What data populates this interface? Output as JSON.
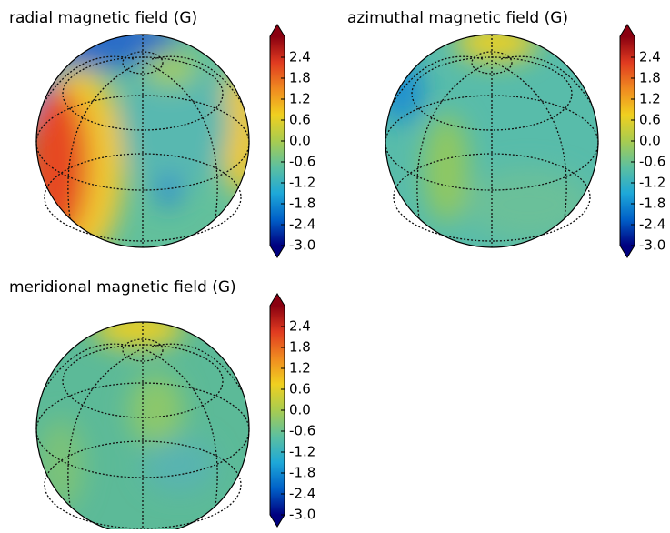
{
  "chart_data": [
    {
      "type": "map",
      "title": "radial magnetic field (G)",
      "colormap": [
        "#00007f",
        "#0060c8",
        "#1ea8d8",
        "#5cc0a0",
        "#a8cc50",
        "#f0d020",
        "#f08a20",
        "#e03a20",
        "#8a0010"
      ],
      "colorbar": {
        "clim": [
          -3,
          3
        ],
        "extend": "both",
        "ticks": [
          {
            "value": -3,
            "label": "-3.0"
          },
          -2.4,
          -1.8,
          -1.2,
          -0.6,
          {
            "value": 0,
            "label": "0.0"
          },
          0.6,
          1.2,
          1.8,
          2.4
        ]
      }
    },
    {
      "type": "map",
      "title": "azimuthal magnetic field (G)",
      "colormap": [
        "#00007f",
        "#0060c8",
        "#1ea8d8",
        "#5cc0a0",
        "#a8cc50",
        "#f0d020",
        "#f08a20",
        "#e03a20",
        "#8a0010"
      ],
      "colorbar": {
        "clim": [
          -3,
          3
        ],
        "extend": "both",
        "ticks": [
          {
            "value": -3,
            "label": "-3.0"
          },
          -2.4,
          -1.8,
          -1.2,
          -0.6,
          {
            "value": 0,
            "label": "0.0"
          },
          0.6,
          1.2,
          1.8,
          2.4
        ]
      }
    },
    {
      "type": "map",
      "title": "meridional magnetic field (G)",
      "colormap": [
        "#00007f",
        "#0060c8",
        "#1ea8d8",
        "#5cc0a0",
        "#a8cc50",
        "#f0d020",
        "#f08a20",
        "#e03a20",
        "#8a0010"
      ],
      "colorbar": {
        "clim": [
          -3,
          3
        ],
        "extend": "both",
        "ticks": [
          {
            "value": -3,
            "label": "-3.0"
          },
          -2.4,
          -1.8,
          -1.2,
          -0.6,
          {
            "value": 0,
            "label": "0.0"
          },
          0.6,
          1.2,
          1.8,
          2.4
        ]
      }
    }
  ]
}
